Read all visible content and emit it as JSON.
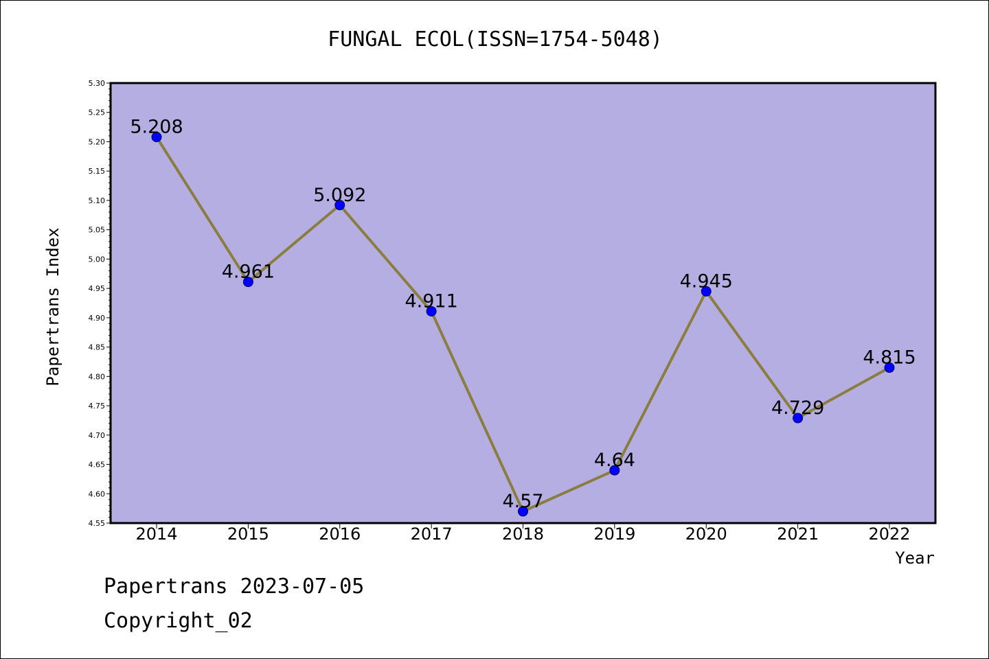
{
  "colors": {
    "plot_background": "#b5aee2",
    "line": "#8b7d3f",
    "marker": "#0000ff",
    "frame": "#000000"
  },
  "chart_data": {
    "type": "line",
    "title": "FUNGAL ECOL(ISSN=1754-5048)",
    "xlabel": "Year",
    "ylabel": "Papertrans Index",
    "ylim": [
      4.55,
      5.3
    ],
    "y_ticks": [
      "4.55",
      "4.60",
      "4.65",
      "4.70",
      "4.75",
      "4.80",
      "4.85",
      "4.90",
      "4.95",
      "5.00",
      "5.05",
      "5.10",
      "5.15",
      "5.20",
      "5.25",
      "5.30"
    ],
    "categories": [
      "2014",
      "2015",
      "2016",
      "2017",
      "2018",
      "2019",
      "2020",
      "2021",
      "2022"
    ],
    "values": [
      5.208,
      4.961,
      5.092,
      4.911,
      4.57,
      4.64,
      4.945,
      4.729,
      4.815
    ],
    "data_labels": [
      "5.208",
      "4.961",
      "5.092",
      "4.911",
      "4.57",
      "4.64",
      "4.945",
      "4.729",
      "4.815"
    ],
    "grid": false,
    "legend": "none"
  },
  "footer": {
    "date_line": "Papertrans 2023-07-05",
    "copyright_line": "Copyright_02"
  }
}
